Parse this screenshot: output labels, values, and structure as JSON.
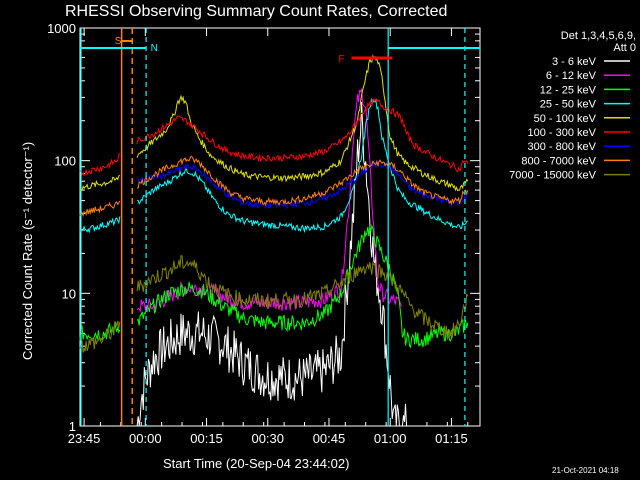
{
  "chart_data": {
    "type": "line",
    "title": "RHESSI Observing Summary Count Rates, Corrected",
    "xlabel": "Start Time (20-Sep-04 23:44:02)",
    "ylabel": "Corrected Count Rate (s⁻¹ detector⁻¹)",
    "x_unit": "minutes after 23:44:02",
    "xlim": [
      0,
      98
    ],
    "ylim": [
      1,
      1000
    ],
    "y_scale": "log",
    "x_ticks": [
      {
        "t": 1,
        "label": "23:45"
      },
      {
        "t": 16,
        "label": "00:00"
      },
      {
        "t": 31,
        "label": "00:15"
      },
      {
        "t": 46,
        "label": "00:30"
      },
      {
        "t": 61,
        "label": "00:45"
      },
      {
        "t": 76,
        "label": "01:00"
      },
      {
        "t": 91,
        "label": "01:15"
      }
    ],
    "y_ticks": [
      {
        "v": 1,
        "label": "1"
      },
      {
        "v": 10,
        "label": "10"
      },
      {
        "v": 100,
        "label": "100"
      },
      {
        "v": 1000,
        "label": "1000"
      }
    ],
    "legend_header": [
      "Det 1,3,4,5,6,9,",
      "Att 0"
    ],
    "series": [
      {
        "name": "3 - 6 keV",
        "color": "#ffffff",
        "points": [
          [
            0,
            null
          ],
          [
            13.5,
            null
          ],
          [
            14,
            1
          ],
          [
            15,
            1.6
          ],
          [
            16,
            2.2
          ],
          [
            18,
            3.2
          ],
          [
            21,
            4
          ],
          [
            25,
            5
          ],
          [
            30,
            5
          ],
          [
            35,
            4.2
          ],
          [
            40,
            3
          ],
          [
            45,
            2.4
          ],
          [
            50,
            2.3
          ],
          [
            55,
            2.3
          ],
          [
            60,
            2.6
          ],
          [
            64,
            3.5
          ],
          [
            65.5,
            12
          ],
          [
            67,
            40
          ],
          [
            68,
            110
          ],
          [
            69,
            200
          ],
          [
            70,
            100
          ],
          [
            71,
            40
          ],
          [
            72,
            18
          ],
          [
            74,
            8
          ],
          [
            75,
            4
          ],
          [
            76,
            2
          ],
          [
            77,
            1
          ],
          [
            80,
            1
          ]
        ]
      },
      {
        "name": "6 - 12 keV",
        "color": "#ff00ff",
        "points": [
          [
            0,
            null
          ],
          [
            13.5,
            null
          ],
          [
            14,
            8
          ],
          [
            18,
            8
          ],
          [
            22,
            9.5
          ],
          [
            26,
            11
          ],
          [
            30,
            11
          ],
          [
            35,
            9.5
          ],
          [
            40,
            8.5
          ],
          [
            45,
            8.5
          ],
          [
            50,
            8.5
          ],
          [
            55,
            8.5
          ],
          [
            60,
            9
          ],
          [
            64,
            11
          ],
          [
            66,
            50
          ],
          [
            67,
            160
          ],
          [
            68,
            280
          ],
          [
            69,
            330
          ],
          [
            70,
            250
          ],
          [
            71,
            90
          ],
          [
            72,
            30
          ],
          [
            73,
            12
          ],
          [
            74,
            10
          ],
          [
            76,
            9
          ],
          [
            78,
            8.5
          ],
          [
            79,
            7.5
          ],
          [
            80,
            null
          ]
        ]
      },
      {
        "name": "12 - 25 keV",
        "color": "#00ff00",
        "points": [
          [
            0,
            5
          ],
          [
            3,
            5
          ],
          [
            6,
            5
          ],
          [
            9,
            5.5
          ],
          [
            10,
            6
          ],
          [
            10.5,
            null
          ],
          [
            13.5,
            null
          ],
          [
            14,
            6
          ],
          [
            18,
            8
          ],
          [
            22,
            10
          ],
          [
            26,
            11
          ],
          [
            30,
            10.5
          ],
          [
            35,
            8
          ],
          [
            40,
            6.5
          ],
          [
            45,
            6
          ],
          [
            50,
            6
          ],
          [
            55,
            6
          ],
          [
            60,
            7
          ],
          [
            64,
            10
          ],
          [
            67,
            18
          ],
          [
            69,
            25
          ],
          [
            70,
            30
          ],
          [
            71,
            30
          ],
          [
            72,
            27
          ],
          [
            74,
            20
          ],
          [
            76,
            15
          ],
          [
            77,
            12
          ],
          [
            78,
            9
          ],
          [
            79,
            5
          ],
          [
            80,
            4.5
          ],
          [
            84,
            4.5
          ],
          [
            88,
            5
          ],
          [
            92,
            5
          ],
          [
            95,
            6
          ]
        ]
      },
      {
        "name": "25 - 50 keV",
        "color": "#00ffff",
        "points": [
          [
            0,
            30
          ],
          [
            3,
            31
          ],
          [
            6,
            33
          ],
          [
            9,
            35
          ],
          [
            10,
            37
          ],
          [
            10.5,
            null
          ],
          [
            13.5,
            null
          ],
          [
            14,
            48
          ],
          [
            18,
            60
          ],
          [
            22,
            70
          ],
          [
            24,
            78
          ],
          [
            26,
            85
          ],
          [
            28,
            80
          ],
          [
            30,
            68
          ],
          [
            33,
            50
          ],
          [
            36,
            40
          ],
          [
            40,
            35
          ],
          [
            45,
            33
          ],
          [
            50,
            32
          ],
          [
            55,
            31
          ],
          [
            60,
            32
          ],
          [
            64,
            38
          ],
          [
            67,
            60
          ],
          [
            69,
            110
          ],
          [
            70,
            180
          ],
          [
            71,
            260
          ],
          [
            72,
            300
          ],
          [
            73,
            250
          ],
          [
            74,
            150
          ],
          [
            76,
            90
          ],
          [
            78,
            60
          ],
          [
            80,
            50
          ],
          [
            84,
            42
          ],
          [
            88,
            36
          ],
          [
            91,
            33
          ],
          [
            93,
            31
          ],
          [
            95,
            35
          ]
        ]
      },
      {
        "name": "50 - 100 keV",
        "color": "#dddd00",
        "points": [
          [
            0,
            62
          ],
          [
            3,
            65
          ],
          [
            6,
            68
          ],
          [
            9,
            72
          ],
          [
            10,
            80
          ],
          [
            10.5,
            null
          ],
          [
            13.5,
            null
          ],
          [
            14,
            110
          ],
          [
            18,
            140
          ],
          [
            21,
            170
          ],
          [
            23,
            220
          ],
          [
            24,
            280
          ],
          [
            25,
            300
          ],
          [
            26,
            270
          ],
          [
            27,
            200
          ],
          [
            29,
            150
          ],
          [
            32,
            110
          ],
          [
            36,
            90
          ],
          [
            40,
            78
          ],
          [
            45,
            75
          ],
          [
            50,
            74
          ],
          [
            55,
            76
          ],
          [
            60,
            82
          ],
          [
            64,
            100
          ],
          [
            66,
            140
          ],
          [
            68,
            200
          ],
          [
            69,
            300
          ],
          [
            70,
            420
          ],
          [
            71,
            560
          ],
          [
            72,
            600
          ],
          [
            73,
            560
          ],
          [
            74,
            420
          ],
          [
            75,
            250
          ],
          [
            76,
            150
          ],
          [
            78,
            110
          ],
          [
            80,
            95
          ],
          [
            84,
            80
          ],
          [
            88,
            70
          ],
          [
            91,
            65
          ],
          [
            93,
            60
          ],
          [
            95,
            70
          ]
        ]
      },
      {
        "name": "100 - 300 keV",
        "color": "#ff0000",
        "points": [
          [
            0,
            80
          ],
          [
            3,
            85
          ],
          [
            6,
            90
          ],
          [
            9,
            100
          ],
          [
            10,
            115
          ],
          [
            10.5,
            null
          ],
          [
            13.5,
            null
          ],
          [
            14,
            140
          ],
          [
            18,
            160
          ],
          [
            22,
            190
          ],
          [
            24,
            210
          ],
          [
            26,
            200
          ],
          [
            28,
            180
          ],
          [
            30,
            160
          ],
          [
            33,
            135
          ],
          [
            36,
            118
          ],
          [
            40,
            108
          ],
          [
            45,
            105
          ],
          [
            50,
            105
          ],
          [
            55,
            108
          ],
          [
            60,
            118
          ],
          [
            64,
            140
          ],
          [
            66,
            160
          ],
          [
            68,
            200
          ],
          [
            70,
            250
          ],
          [
            72,
            280
          ],
          [
            73,
            280
          ],
          [
            74,
            260
          ],
          [
            76,
            240
          ],
          [
            78,
            220
          ],
          [
            79,
            200
          ],
          [
            80,
            160
          ],
          [
            82,
            130
          ],
          [
            86,
            110
          ],
          [
            90,
            95
          ],
          [
            92,
            90
          ],
          [
            93,
            85
          ],
          [
            94,
            100
          ],
          [
            95,
            95
          ]
        ]
      },
      {
        "name": "300 - 800 keV",
        "color": "#0000ff",
        "points": [
          [
            0,
            null
          ],
          [
            13.5,
            null
          ],
          [
            14,
            70
          ],
          [
            18,
            75
          ],
          [
            22,
            80
          ],
          [
            25,
            88
          ],
          [
            27,
            90
          ],
          [
            29,
            85
          ],
          [
            31,
            75
          ],
          [
            34,
            62
          ],
          [
            37,
            53
          ],
          [
            40,
            48
          ],
          [
            45,
            46
          ],
          [
            50,
            46
          ],
          [
            55,
            48
          ],
          [
            60,
            52
          ],
          [
            64,
            60
          ],
          [
            67,
            70
          ],
          [
            69,
            80
          ],
          [
            71,
            90
          ],
          [
            73,
            95
          ],
          [
            75,
            93
          ],
          [
            77,
            85
          ],
          [
            79,
            72
          ],
          [
            81,
            62
          ],
          [
            84,
            55
          ],
          [
            88,
            52
          ],
          [
            91,
            48
          ],
          [
            93,
            47
          ],
          [
            94,
            52
          ],
          [
            95,
            55
          ]
        ]
      },
      {
        "name": "800 - 7000 keV",
        "color": "#ff8000",
        "points": [
          [
            0,
            40
          ],
          [
            3,
            42
          ],
          [
            6,
            44
          ],
          [
            9,
            47
          ],
          [
            10,
            52
          ],
          [
            10.5,
            null
          ],
          [
            13.5,
            null
          ],
          [
            14,
            65
          ],
          [
            18,
            78
          ],
          [
            22,
            90
          ],
          [
            25,
            100
          ],
          [
            27,
            103
          ],
          [
            29,
            98
          ],
          [
            31,
            85
          ],
          [
            34,
            68
          ],
          [
            37,
            57
          ],
          [
            40,
            52
          ],
          [
            45,
            49
          ],
          [
            50,
            49
          ],
          [
            55,
            52
          ],
          [
            60,
            58
          ],
          [
            64,
            68
          ],
          [
            67,
            80
          ],
          [
            69,
            88
          ],
          [
            71,
            92
          ],
          [
            73,
            97
          ],
          [
            75,
            95
          ],
          [
            77,
            90
          ],
          [
            79,
            80
          ],
          [
            81,
            68
          ],
          [
            84,
            58
          ],
          [
            88,
            52
          ],
          [
            91,
            50
          ],
          [
            93,
            50
          ],
          [
            94,
            58
          ],
          [
            95,
            60
          ]
        ]
      },
      {
        "name": "7000 - 15000 keV",
        "color": "#808000",
        "points": [
          [
            0,
            4
          ],
          [
            3,
            4.2
          ],
          [
            6,
            4.6
          ],
          [
            9,
            5.5
          ],
          [
            10,
            6.5
          ],
          [
            10.5,
            null
          ],
          [
            13.5,
            null
          ],
          [
            14,
            11
          ],
          [
            18,
            13
          ],
          [
            22,
            15
          ],
          [
            25,
            17
          ],
          [
            27,
            17
          ],
          [
            29,
            15
          ],
          [
            31,
            12.5
          ],
          [
            34,
            10.5
          ],
          [
            37,
            9.5
          ],
          [
            40,
            9
          ],
          [
            45,
            8.8
          ],
          [
            50,
            8.8
          ],
          [
            55,
            9
          ],
          [
            60,
            10
          ],
          [
            64,
            12
          ],
          [
            67,
            14
          ],
          [
            69,
            15.5
          ],
          [
            71,
            16
          ],
          [
            73,
            15
          ],
          [
            75,
            14
          ],
          [
            77,
            12
          ],
          [
            79,
            10
          ],
          [
            81,
            8
          ],
          [
            84,
            6.5
          ],
          [
            88,
            5.5
          ],
          [
            91,
            5
          ],
          [
            93,
            6
          ],
          [
            95,
            9.5
          ]
        ]
      }
    ],
    "annotations": [
      {
        "label": "S",
        "color": "#ff8000"
      },
      {
        "label": "N",
        "color": "#00ffff"
      },
      {
        "label": "F",
        "color": "#ff0000"
      }
    ],
    "footer": "21-Oct-2021 04:18",
    "grid": false,
    "legend_position": "right"
  }
}
